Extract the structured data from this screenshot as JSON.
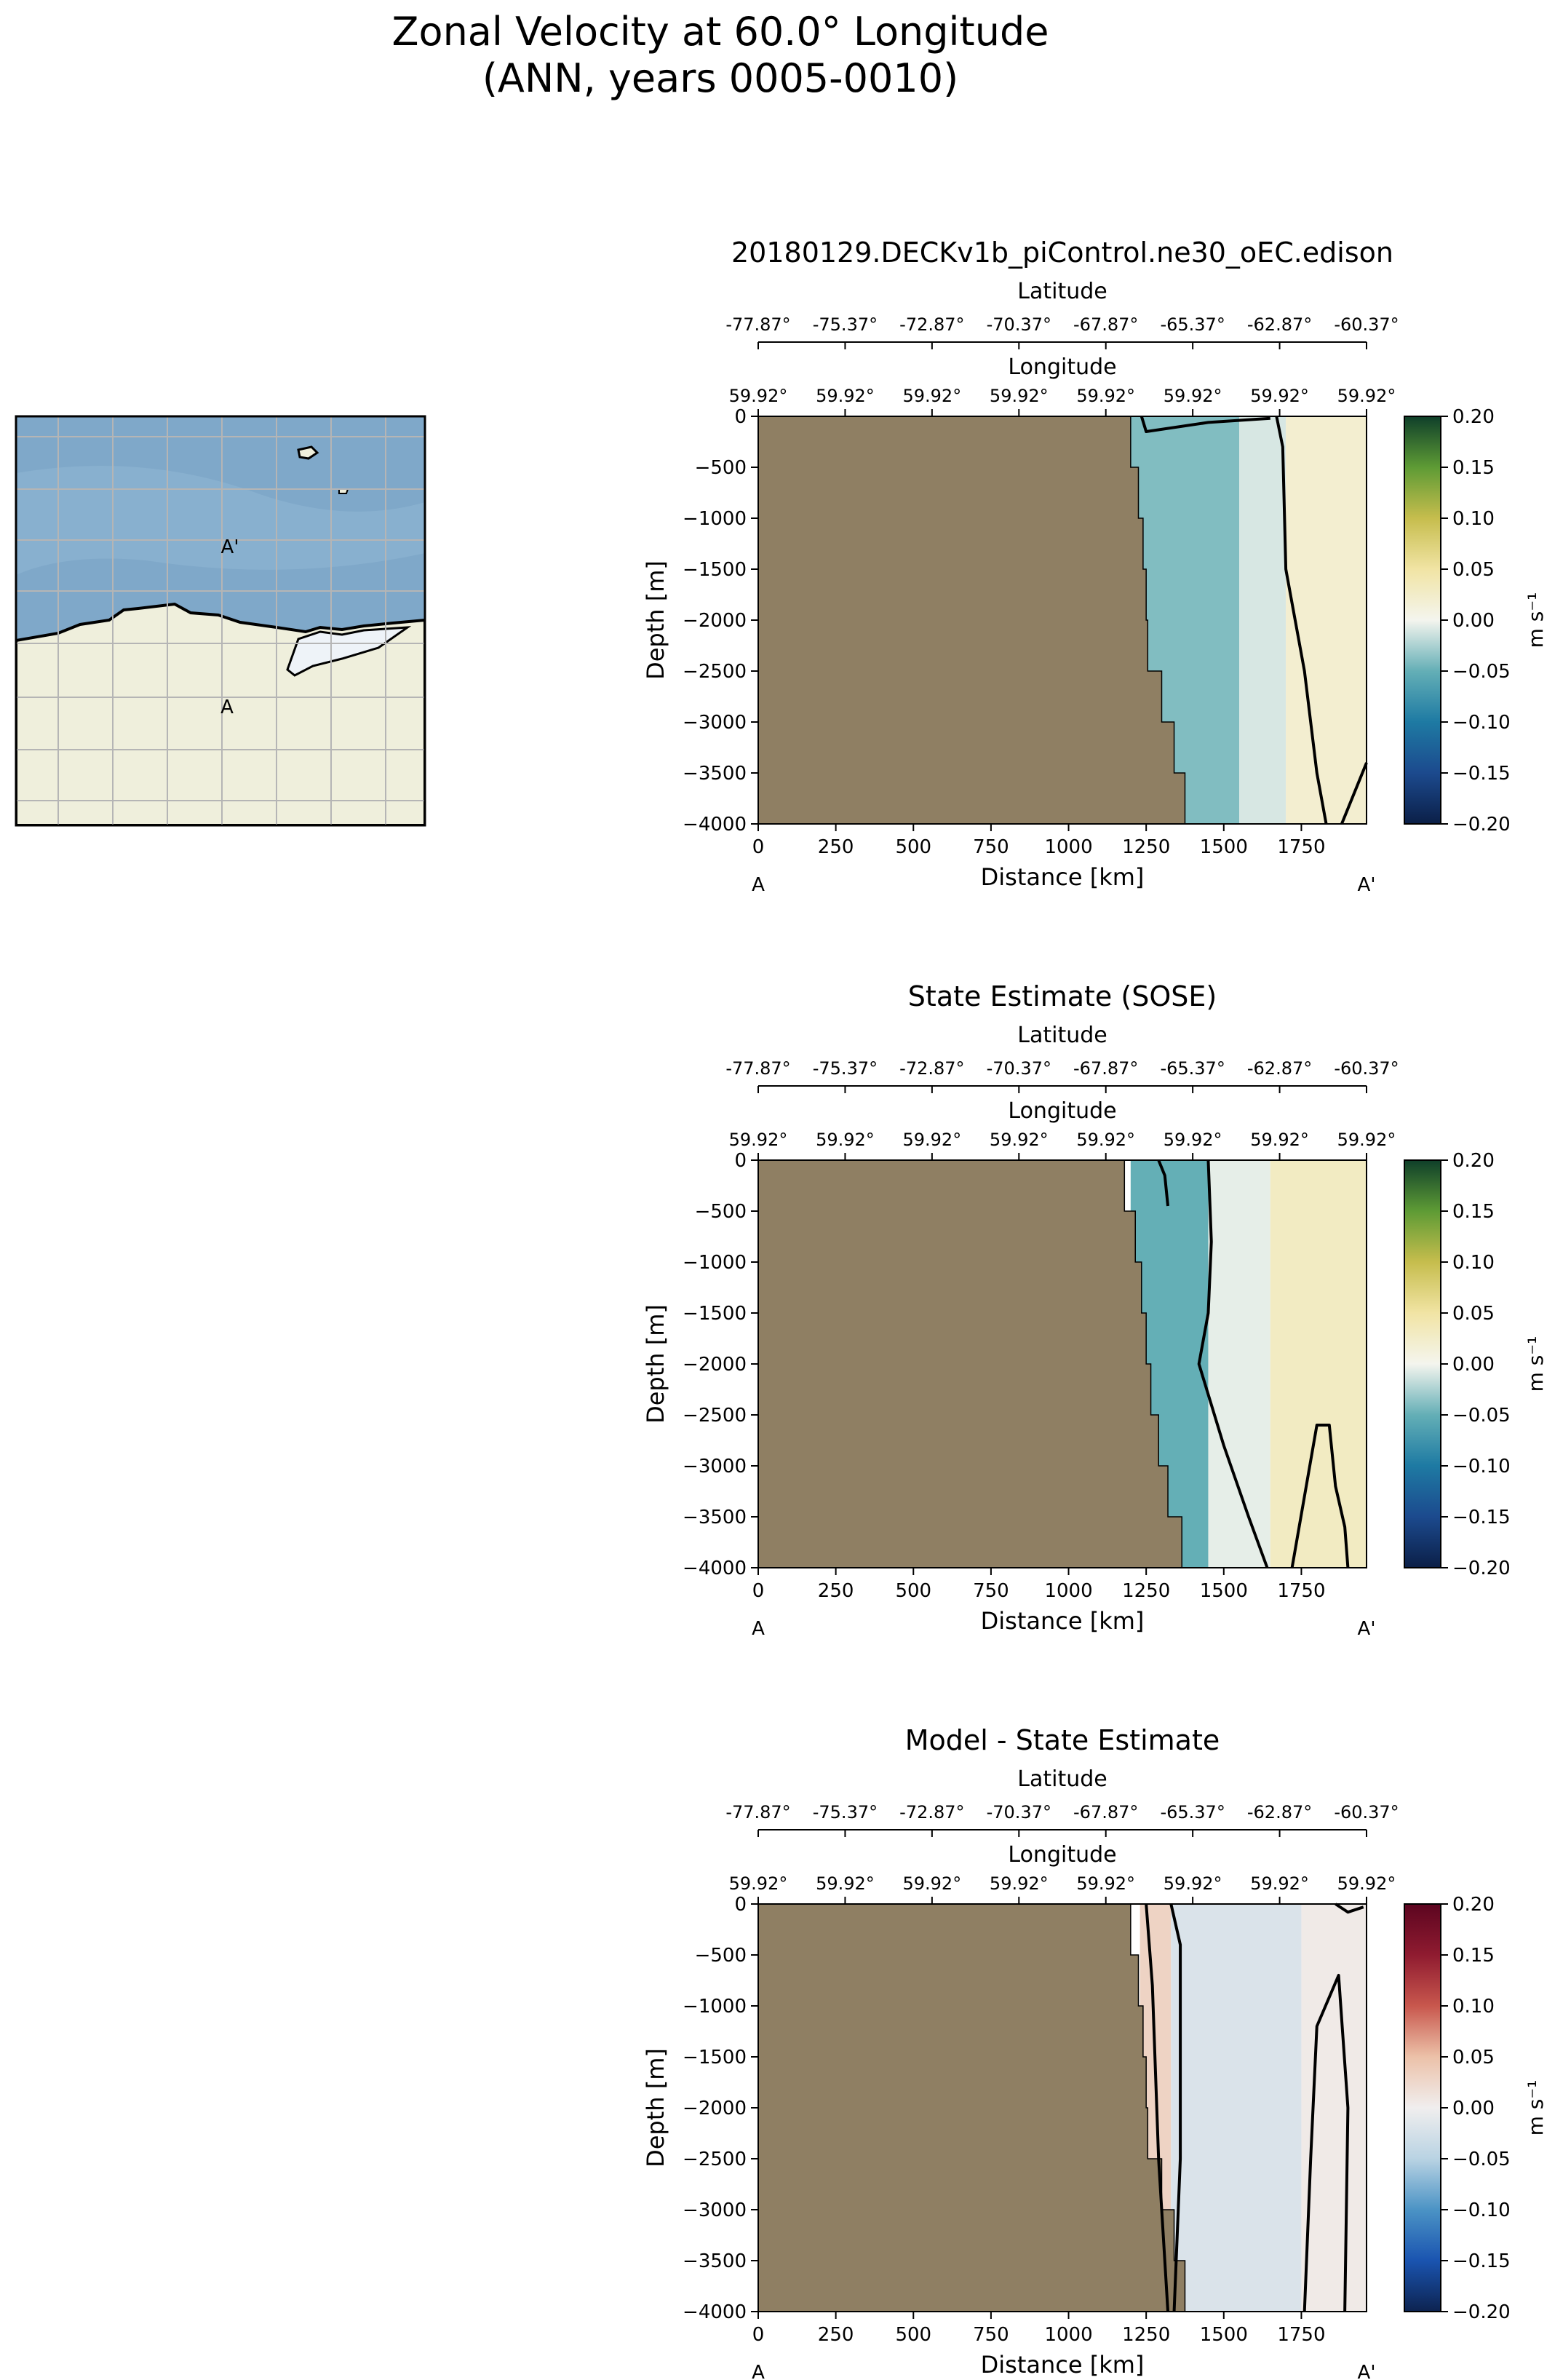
{
  "figure": {
    "title_line1": "Zonal Velocity at 60.0° Longitude",
    "title_line2": "(ANN, years 0005-0010)"
  },
  "map": {
    "marker_start": "A",
    "marker_end": "A'",
    "colors": {
      "ocean": "#7fa8c9",
      "land": "#efefdc",
      "grid": "#b5b5b5"
    }
  },
  "panels": [
    {
      "title": "20180129.DECKv1b_piControl.ne30_oEC.edison",
      "colormap": "ocean"
    },
    {
      "title": "State Estimate (SOSE)",
      "colormap": "ocean"
    },
    {
      "title": "Model - State Estimate",
      "colormap": "diff"
    }
  ],
  "axes": {
    "latitude_label": "Latitude",
    "latitude_ticks": [
      "-77.87°",
      "-75.37°",
      "-72.87°",
      "-70.37°",
      "-67.87°",
      "-65.37°",
      "-62.87°",
      "-60.37°"
    ],
    "longitude_label": "Longitude",
    "longitude_ticks": [
      "59.92°",
      "59.92°",
      "59.92°",
      "59.92°",
      "59.92°",
      "59.92°",
      "59.92°",
      "59.92°"
    ],
    "x_label": "Distance [km]",
    "x_ticks": [
      "0",
      "250",
      "500",
      "750",
      "1000",
      "1250",
      "1500",
      "1750"
    ],
    "y_label": "Depth [m]",
    "y_ticks": [
      "0",
      "−500",
      "−1000",
      "−1500",
      "−2000",
      "−2500",
      "−3000",
      "−3500",
      "−4000"
    ],
    "start_marker": "A",
    "end_marker": "A'"
  },
  "colorbar": {
    "label": "m s⁻¹",
    "ticks": [
      "0.20",
      "0.15",
      "0.10",
      "0.05",
      "0.00",
      "−0.05",
      "−0.10",
      "−0.15",
      "−0.20"
    ]
  },
  "colors": {
    "bathymetry": "#8f7f63",
    "ocean_cmap": [
      "#0b1f47",
      "#1c4a8e",
      "#1e7aa3",
      "#64afb6",
      "#f4f5ee",
      "#f1e4a4",
      "#c6bd4d",
      "#5e9b35",
      "#0f3f2a"
    ],
    "diff_cmap": [
      "#0d2350",
      "#1a54b0",
      "#4b93c5",
      "#b9d3e3",
      "#f0eeee",
      "#ecc1a8",
      "#c8574d",
      "#8f1b30",
      "#5c0520"
    ]
  },
  "chart_data": [
    {
      "type": "heatmap",
      "title": "20180129.DECKv1b_piControl.ne30_oEC.edison",
      "xlabel": "Distance [km]",
      "ylabel": "Depth [m]",
      "xlim": [
        0,
        1960
      ],
      "ylim": [
        -4000,
        0
      ],
      "colorbar_range": [
        -0.2,
        0.2
      ],
      "colorbar_label": "m s⁻¹",
      "bathymetry_edge_km": [
        [
          0,
          1200
        ],
        [
          500,
          1225
        ],
        [
          1000,
          1240
        ],
        [
          1500,
          1250
        ],
        [
          2000,
          1255
        ],
        [
          2500,
          1300
        ],
        [
          3000,
          1340
        ],
        [
          3500,
          1375
        ],
        [
          4000,
          1480
        ]
      ],
      "velocity_regions": [
        {
          "x_range": [
            1200,
            1550
          ],
          "value": -0.04
        },
        {
          "x_range": [
            1550,
            1700
          ],
          "value": -0.01
        },
        {
          "x_range": [
            1700,
            1960
          ],
          "value": 0.02
        }
      ],
      "zero_contours": [
        [
          [
            1235,
            0
          ],
          [
            1250,
            -150
          ],
          [
            1450,
            -60
          ],
          [
            1650,
            -20
          ]
        ],
        [
          [
            1670,
            0
          ],
          [
            1690,
            -300
          ],
          [
            1700,
            -1500
          ],
          [
            1760,
            -2500
          ],
          [
            1800,
            -3500
          ],
          [
            1830,
            -4000
          ]
        ],
        [
          [
            1880,
            -4000
          ],
          [
            1920,
            -3700
          ],
          [
            1960,
            -3400
          ]
        ]
      ]
    },
    {
      "type": "heatmap",
      "title": "State Estimate (SOSE)",
      "xlabel": "Distance [km]",
      "ylabel": "Depth [m]",
      "xlim": [
        0,
        1960
      ],
      "ylim": [
        -4000,
        0
      ],
      "colorbar_range": [
        -0.2,
        0.2
      ],
      "colorbar_label": "m s⁻¹",
      "bathymetry_edge_km": [
        [
          0,
          1180
        ],
        [
          500,
          1215
        ],
        [
          1000,
          1235
        ],
        [
          1500,
          1250
        ],
        [
          2000,
          1265
        ],
        [
          2500,
          1290
        ],
        [
          3000,
          1320
        ],
        [
          3500,
          1365
        ],
        [
          4000,
          1460
        ]
      ],
      "velocity_regions": [
        {
          "x_range": [
            1200,
            1450
          ],
          "value": -0.05
        },
        {
          "x_range": [
            1450,
            1650
          ],
          "value": -0.005
        },
        {
          "x_range": [
            1650,
            1960
          ],
          "value": 0.03
        }
      ],
      "zero_contours": [
        [
          [
            1290,
            0
          ],
          [
            1310,
            -150
          ],
          [
            1320,
            -450
          ]
        ],
        [
          [
            1450,
            0
          ],
          [
            1460,
            -800
          ],
          [
            1450,
            -1500
          ],
          [
            1420,
            -2000
          ],
          [
            1500,
            -2800
          ],
          [
            1580,
            -3500
          ],
          [
            1640,
            -4000
          ]
        ],
        [
          [
            1720,
            -4000
          ],
          [
            1760,
            -3300
          ],
          [
            1800,
            -2600
          ],
          [
            1840,
            -2600
          ],
          [
            1860,
            -3200
          ],
          [
            1890,
            -3600
          ],
          [
            1900,
            -4000
          ]
        ]
      ]
    },
    {
      "type": "heatmap",
      "title": "Model - State Estimate",
      "xlabel": "Distance [km]",
      "ylabel": "Depth [m]",
      "xlim": [
        0,
        1960
      ],
      "ylim": [
        -4000,
        0
      ],
      "colorbar_range": [
        -0.2,
        0.2
      ],
      "colorbar_label": "m s⁻¹",
      "bathymetry_edge_km": [
        [
          0,
          1200
        ],
        [
          500,
          1225
        ],
        [
          1000,
          1240
        ],
        [
          1500,
          1250
        ],
        [
          2000,
          1255
        ],
        [
          2500,
          1300
        ],
        [
          3000,
          1340
        ],
        [
          3500,
          1375
        ],
        [
          4000,
          1480
        ]
      ],
      "velocity_regions": [
        {
          "x_range": [
            1230,
            1330
          ],
          "value": 0.03
        },
        {
          "x_range": [
            1330,
            1750
          ],
          "value": -0.02
        },
        {
          "x_range": [
            1750,
            1960
          ],
          "value": 0.005
        }
      ],
      "zero_contours": [
        [
          [
            1250,
            0
          ],
          [
            1270,
            -800
          ],
          [
            1290,
            -2500
          ],
          [
            1320,
            -4000
          ]
        ],
        [
          [
            1330,
            0
          ],
          [
            1360,
            -400
          ],
          [
            1360,
            -2500
          ],
          [
            1340,
            -4000
          ]
        ],
        [
          [
            1760,
            -4000
          ],
          [
            1780,
            -2500
          ],
          [
            1800,
            -1200
          ],
          [
            1870,
            -700
          ],
          [
            1900,
            -2000
          ],
          [
            1890,
            -4000
          ]
        ],
        [
          [
            1860,
            0
          ],
          [
            1900,
            -80
          ],
          [
            1950,
            -30
          ]
        ]
      ]
    }
  ]
}
